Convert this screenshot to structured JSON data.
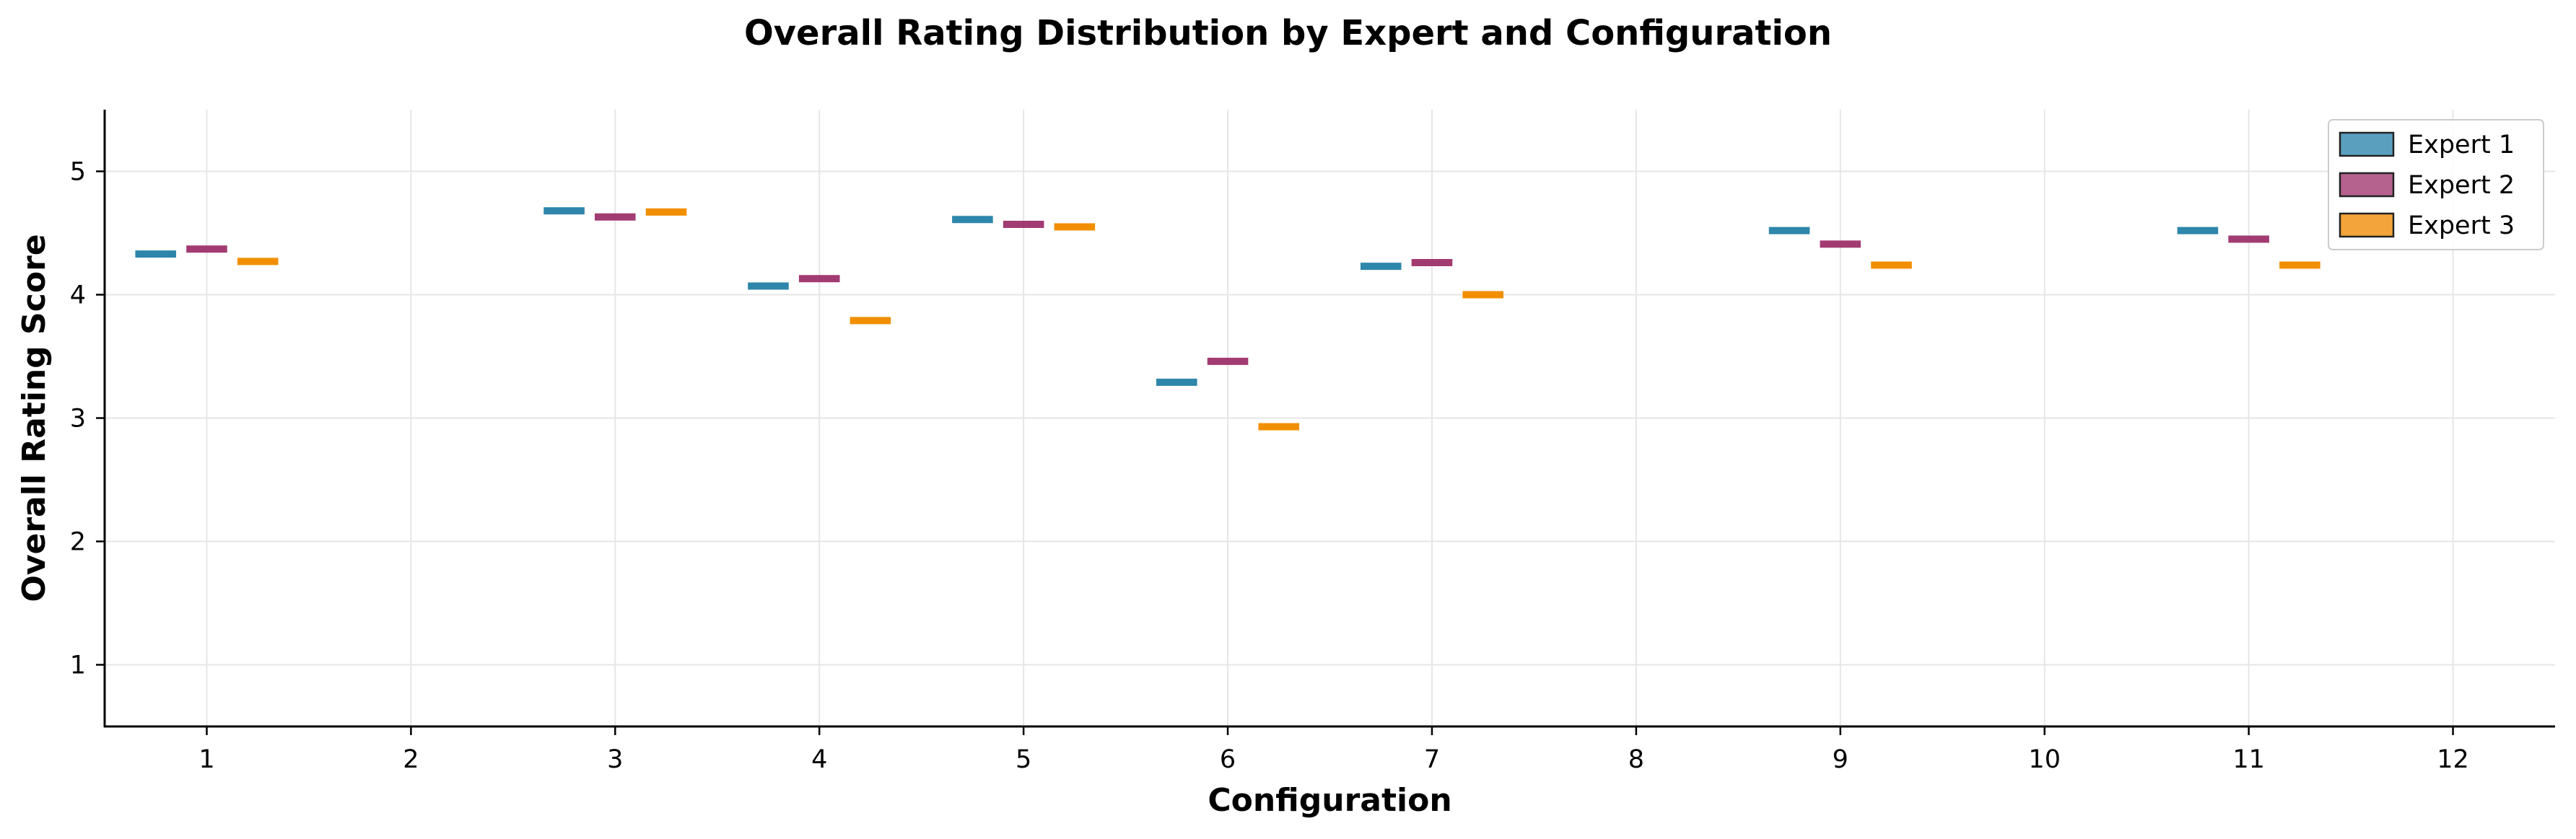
{
  "chart_data": {
    "type": "scatter",
    "title": "Overall Rating Distribution by Expert and Configuration",
    "xlabel": "Configuration",
    "ylabel": "Overall Rating Score",
    "x_ticks": [
      "1",
      "2",
      "3",
      "4",
      "5",
      "6",
      "7",
      "8",
      "9",
      "10",
      "11",
      "12"
    ],
    "y_ticks": [
      "1",
      "2",
      "3",
      "4",
      "5"
    ],
    "xlim": [
      0.5,
      12.5
    ],
    "ylim": [
      0.5,
      5.5
    ],
    "grid": true,
    "legend_position": "top-right",
    "marker": "horizontal-dash",
    "series": [
      {
        "name": "Expert 1",
        "color": "#2E86AB",
        "legend_color": "#5A9FBE",
        "x": [
          1,
          3,
          4,
          5,
          6,
          7,
          9,
          11
        ],
        "values": [
          4.33,
          4.68,
          4.07,
          4.61,
          3.29,
          4.23,
          4.52,
          4.52
        ]
      },
      {
        "name": "Expert 2",
        "color": "#A23B72",
        "legend_color": "#B5628F",
        "x": [
          1,
          3,
          4,
          5,
          6,
          7,
          9,
          11
        ],
        "values": [
          4.37,
          4.63,
          4.13,
          4.57,
          3.46,
          4.26,
          4.41,
          4.45
        ]
      },
      {
        "name": "Expert 3",
        "color": "#F18F01",
        "legend_color": "#F3A43A",
        "x": [
          1,
          3,
          4,
          5,
          6,
          7,
          9,
          11
        ],
        "values": [
          4.27,
          4.67,
          3.79,
          4.55,
          2.93,
          4.0,
          4.24,
          4.24
        ]
      }
    ]
  }
}
